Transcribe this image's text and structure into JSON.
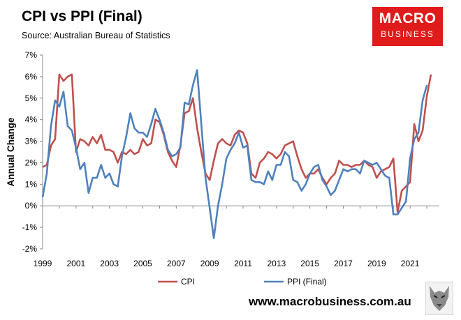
{
  "header": {
    "title": "CPI vs PPI (Final)",
    "subtitle": "Source: Australian Bureau of Statistics"
  },
  "logo": {
    "line1": "MACRO",
    "line2": "BUSINESS",
    "color": "#e01b1b"
  },
  "footer": {
    "url": "www.macrobusiness.com.au",
    "mascot_icon": "wolf-icon"
  },
  "chart_data": {
    "type": "line",
    "title": "CPI vs PPI (Final)",
    "subtitle": "Source: Australian Bureau of Statistics",
    "ylabel": "Annual Change",
    "xlabel": "",
    "xlim": [
      1999.0,
      2022.75
    ],
    "ylim": [
      -2,
      7
    ],
    "x_ticks": [
      1999,
      2001,
      2003,
      2005,
      2007,
      2009,
      2011,
      2013,
      2015,
      2017,
      2019,
      2021
    ],
    "y_ticks": [
      -2,
      -1,
      0,
      1,
      2,
      3,
      4,
      5,
      6,
      7
    ],
    "y_tick_labels": [
      "-2%",
      "-1%",
      "0%",
      "1%",
      "2%",
      "3%",
      "4%",
      "5%",
      "6%",
      "7%"
    ],
    "grid": false,
    "legend_position": "bottom",
    "series": [
      {
        "name": "CPI",
        "color": "#c0504d",
        "x_start": 1999.0,
        "x_step": 0.25,
        "values": [
          1.8,
          1.9,
          2.8,
          3.1,
          6.1,
          5.8,
          6.0,
          6.1,
          2.5,
          3.1,
          3.0,
          2.8,
          3.2,
          2.9,
          3.3,
          2.6,
          2.6,
          2.5,
          2.0,
          2.5,
          2.4,
          2.6,
          2.4,
          2.5,
          3.1,
          2.8,
          2.9,
          4.0,
          3.9,
          3.3,
          2.5,
          2.1,
          1.8,
          2.8,
          4.3,
          4.4,
          5.0,
          3.6,
          2.5,
          1.5,
          1.2,
          2.1,
          2.9,
          3.1,
          2.9,
          2.8,
          3.3,
          3.5,
          3.4,
          2.9,
          1.5,
          1.3,
          2.0,
          2.2,
          2.5,
          2.4,
          2.2,
          2.4,
          2.8,
          2.9,
          3.0,
          2.3,
          1.7,
          1.3,
          1.5,
          1.5,
          1.7,
          1.3,
          1.0,
          1.3,
          1.5,
          2.1,
          1.9,
          1.9,
          1.8,
          1.9,
          1.9,
          2.1,
          1.9,
          1.8,
          1.3,
          1.6,
          1.7,
          1.8,
          2.2,
          -0.3,
          0.7,
          0.9,
          1.1,
          3.8,
          3.0,
          3.5,
          5.1,
          6.1
        ]
      },
      {
        "name": "PPI (Final)",
        "color": "#4f81bd",
        "x_start": 1999.0,
        "x_step": 0.25,
        "values": [
          0.4,
          1.5,
          3.7,
          4.9,
          4.6,
          5.3,
          3.7,
          3.5,
          2.7,
          1.7,
          2.0,
          0.6,
          1.3,
          1.3,
          1.9,
          1.3,
          1.5,
          1.0,
          0.9,
          2.3,
          3.2,
          4.3,
          3.6,
          3.4,
          3.4,
          3.2,
          3.8,
          4.5,
          4.0,
          3.4,
          2.6,
          2.3,
          2.4,
          2.7,
          4.8,
          4.7,
          5.6,
          6.3,
          3.8,
          1.3,
          -0.1,
          -1.5,
          0.0,
          1.0,
          2.2,
          2.6,
          2.9,
          3.4,
          2.7,
          2.8,
          1.2,
          1.1,
          1.1,
          1.0,
          1.6,
          1.2,
          1.9,
          1.9,
          2.5,
          2.3,
          1.2,
          1.1,
          0.7,
          1.0,
          1.5,
          1.8,
          1.9,
          1.2,
          0.9,
          0.5,
          0.7,
          1.2,
          1.7,
          1.6,
          1.7,
          1.7,
          1.5,
          2.1,
          2.0,
          1.9,
          2.0,
          1.7,
          1.4,
          1.3,
          -0.4,
          -0.4,
          -0.1,
          0.2,
          2.2,
          3.1,
          3.4,
          4.9,
          5.6
        ]
      }
    ]
  }
}
